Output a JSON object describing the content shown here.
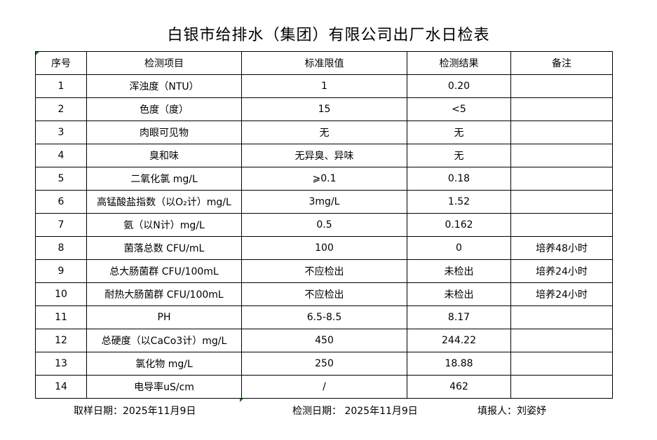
{
  "title": "白银市给排水（集团）有限公司出厂水日检表",
  "table": {
    "headers": [
      "序号",
      "检测项目",
      "标准限值",
      "检测结果",
      "备注"
    ],
    "rows": [
      [
        "1",
        "浑浊度（NTU）",
        "1",
        "0.20",
        ""
      ],
      [
        "2",
        "色度（度）",
        "15",
        "<5",
        ""
      ],
      [
        "3",
        "肉眼可见物",
        "无",
        "无",
        ""
      ],
      [
        "4",
        "臭和味",
        "无异臭、异味",
        "无",
        ""
      ],
      [
        "5",
        "二氧化氯 mg/L",
        "⩾0.1",
        "0.18",
        ""
      ],
      [
        "6",
        "高锰酸盐指数（以O₂计）mg/L",
        "3mg/L",
        "1.52",
        ""
      ],
      [
        "7",
        "氨（以N计）mg/L",
        "0.5",
        "0.162",
        ""
      ],
      [
        "8",
        "菌落总数 CFU/mL",
        "100",
        "0",
        "培养48小时"
      ],
      [
        "9",
        "总大肠菌群 CFU/100mL",
        "不应检出",
        "未检出",
        "培养24小时"
      ],
      [
        "10",
        "耐热大肠菌群 CFU/100mL",
        "不应检出",
        "未检出",
        "培养24小时"
      ],
      [
        "11",
        "PH",
        "6.5-8.5",
        "8.17",
        ""
      ],
      [
        "12",
        "总硬度（以CaCo3计）mg/L",
        "450",
        "244.22",
        ""
      ],
      [
        "13",
        "氯化物 mg/L",
        "250",
        "18.88",
        ""
      ],
      [
        "14",
        "电导率uS/cm",
        "/",
        "462",
        ""
      ]
    ]
  },
  "footer": {
    "sampling_date": "取样日期：2025年11月9日",
    "test_date": "检测日期： 2025年11月9日",
    "reporter": "填报人：刘姿妤"
  }
}
